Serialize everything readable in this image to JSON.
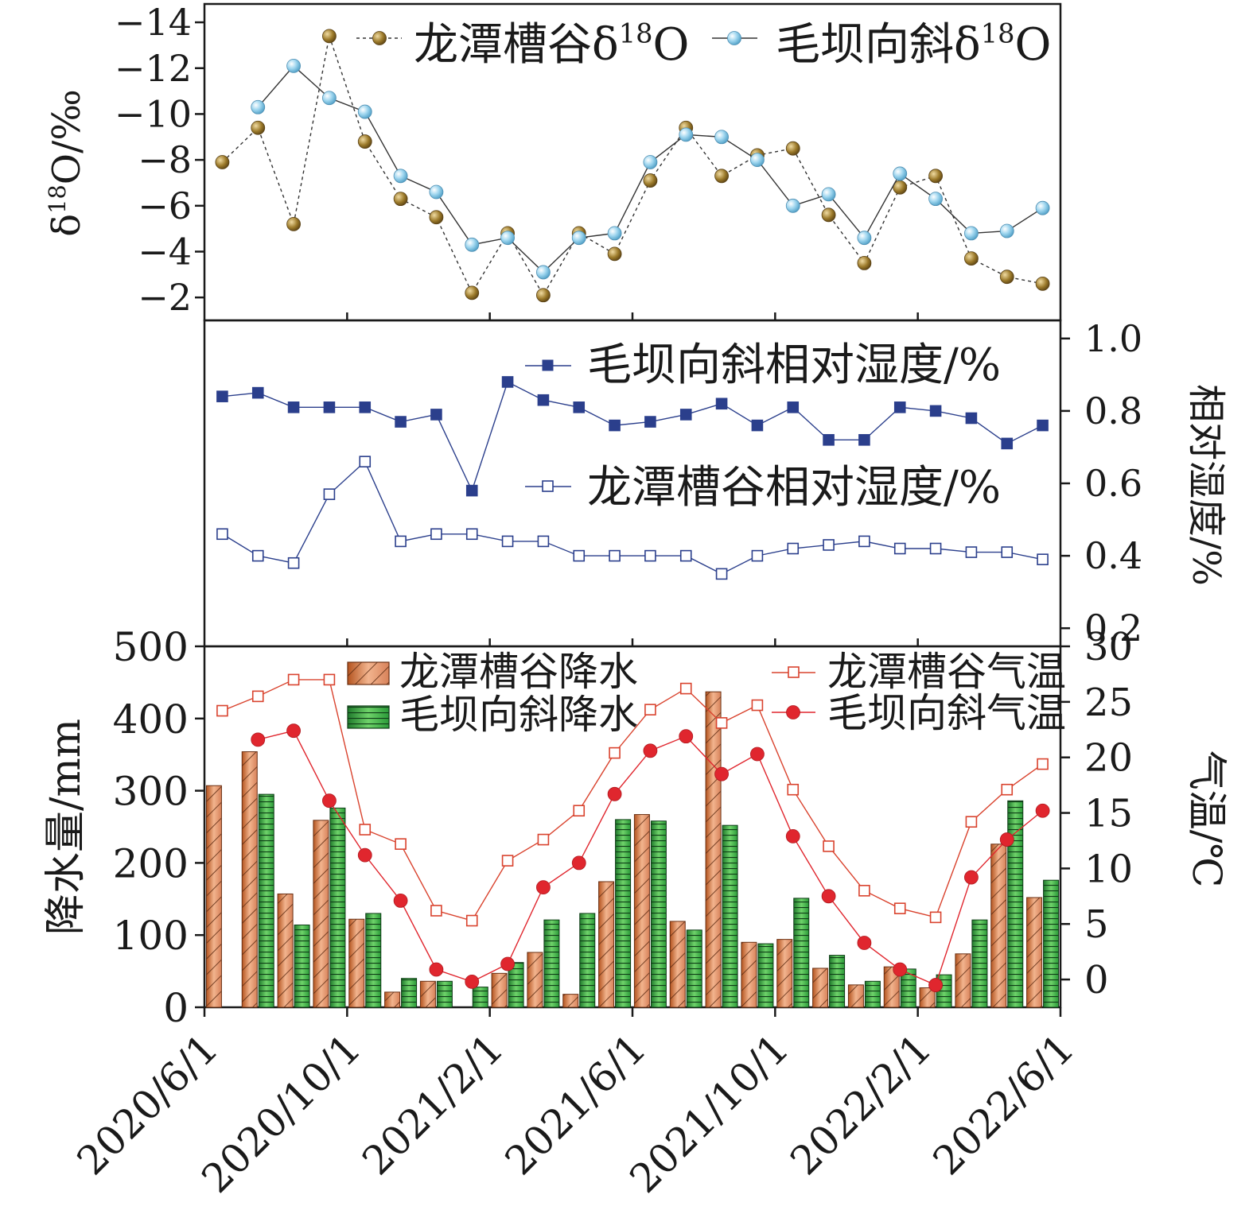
{
  "chart_data": [
    {
      "type": "line",
      "panel": "top",
      "ylabel": "δ18O/‰",
      "ylabel_base": "δ",
      "ylabel_sup": "18",
      "ylabel_rest": "O/‰",
      "ylim": [
        -1,
        -14.8
      ],
      "inverted": true,
      "yticks": [
        -14,
        -12,
        -10,
        -8,
        -6,
        -4,
        -2
      ],
      "ytick_labels": [
        "−14",
        "−12",
        "−10",
        "−8",
        "−6",
        "−4",
        "−2"
      ],
      "legend": [
        {
          "base": "龙潭槽谷δ",
          "sup": "18",
          "rest": "O"
        },
        {
          "base": "毛坝向斜δ",
          "sup": "18",
          "rest": "O"
        }
      ],
      "series": [
        {
          "name": "龙潭槽谷δ18O",
          "color": "#8b6b23",
          "x": [
            0,
            1,
            2,
            3,
            4,
            5,
            6,
            7,
            8,
            9,
            10,
            11,
            12,
            13,
            14,
            15,
            16,
            17,
            18,
            19,
            20,
            21,
            22,
            23
          ],
          "values": [
            -7.9,
            -9.4,
            -5.2,
            -13.4,
            -8.8,
            -6.3,
            -5.5,
            -2.2,
            -4.8,
            -2.1,
            -4.8,
            -3.9,
            -7.1,
            -9.4,
            -7.3,
            -8.2,
            -8.5,
            -5.6,
            -3.5,
            -6.8,
            -7.3,
            -3.7,
            -2.9,
            -2.6
          ]
        },
        {
          "name": "毛坝向斜δ18O",
          "color": "#8ecae6",
          "x": [
            1,
            2,
            3,
            4,
            5,
            6,
            7,
            8,
            9,
            10,
            11,
            12,
            13,
            14,
            15,
            16,
            17,
            18,
            19,
            20,
            21,
            22,
            23
          ],
          "values": [
            -10.3,
            -12.1,
            -10.7,
            -10.1,
            -7.3,
            -6.6,
            -4.3,
            -4.6,
            -3.1,
            -4.6,
            -4.8,
            -7.9,
            -9.1,
            -9.0,
            -8.0,
            -6.0,
            -6.5,
            -4.6,
            -7.4,
            -6.3,
            -4.8,
            -4.9,
            -5.9
          ]
        }
      ]
    },
    {
      "type": "line",
      "panel": "middle",
      "ylabel": "相对湿度/%",
      "ylim": [
        0.15,
        1.05
      ],
      "yticks": [
        0.2,
        0.4,
        0.6,
        0.8,
        1.0
      ],
      "ytick_labels": [
        "0.2",
        "0.4",
        "0.6",
        "0.8",
        "1.0"
      ],
      "series": [
        {
          "name": "毛坝向斜相对湿度/%",
          "color": "#2b3f8c",
          "marker": "filled-square",
          "x": [
            0,
            1,
            2,
            3,
            4,
            5,
            6,
            7,
            8,
            9,
            10,
            11,
            12,
            13,
            14,
            15,
            16,
            17,
            18,
            19,
            20,
            21,
            22,
            23
          ],
          "values": [
            0.84,
            0.85,
            0.81,
            0.81,
            0.81,
            0.77,
            0.79,
            0.58,
            0.88,
            0.83,
            0.81,
            0.76,
            0.77,
            0.79,
            0.82,
            0.76,
            0.81,
            0.72,
            0.72,
            0.81,
            0.8,
            0.78,
            0.71,
            0.76
          ]
        },
        {
          "name": "龙潭槽谷相对湿度/%",
          "color": "#2b3f8c",
          "marker": "open-square",
          "x": [
            0,
            1,
            2,
            3,
            4,
            5,
            6,
            7,
            8,
            9,
            10,
            11,
            12,
            13,
            14,
            15,
            16,
            17,
            18,
            19,
            20,
            21,
            22,
            23
          ],
          "values": [
            0.46,
            0.4,
            0.38,
            0.57,
            0.66,
            0.44,
            0.46,
            0.46,
            0.44,
            0.44,
            0.4,
            0.4,
            0.4,
            0.4,
            0.35,
            0.4,
            0.42,
            0.43,
            0.44,
            0.42,
            0.42,
            0.41,
            0.41,
            0.39
          ]
        }
      ]
    },
    {
      "type": "bar",
      "panel": "bottom",
      "ylabel": "降水量/mm",
      "y2label": "气温/℃",
      "ylim": [
        0,
        500
      ],
      "y2lim": [
        -2.5,
        30
      ],
      "yticks": [
        0,
        100,
        200,
        300,
        400,
        500
      ],
      "y2ticks": [
        0,
        5,
        10,
        15,
        20,
        25,
        30
      ],
      "xticks": [
        "2020/6/1",
        "2020/10/1",
        "2021/2/1",
        "2021/6/1",
        "2021/10/1",
        "2022/2/1",
        "2022/6/1"
      ],
      "legend": [
        "龙潭槽谷降水",
        "毛坝向斜降水",
        "龙潭槽谷气温",
        "毛坝向斜气温"
      ],
      "series": [
        {
          "name": "龙潭槽谷降水",
          "color": "#e08a5c",
          "x": [
            0,
            1,
            2,
            3,
            4,
            5,
            6,
            7,
            8,
            9,
            10,
            11,
            12,
            13,
            14,
            15,
            16,
            17,
            18,
            19,
            20,
            21,
            22,
            23
          ],
          "values": [
            307,
            354,
            157,
            259,
            122,
            21,
            36,
            0,
            47,
            76,
            18,
            174,
            267,
            119,
            437,
            90,
            94,
            54,
            31,
            56,
            27,
            74,
            226,
            152
          ]
        },
        {
          "name": "毛坝向斜降水",
          "color": "#3fae4a",
          "x": [
            0,
            1,
            2,
            3,
            4,
            5,
            6,
            7,
            8,
            9,
            10,
            11,
            12,
            13,
            14,
            15,
            16,
            17,
            18,
            19,
            20,
            21,
            22,
            23
          ],
          "values": [
            0,
            295,
            114,
            276,
            130,
            40,
            36,
            28,
            62,
            121,
            130,
            260,
            258,
            107,
            252,
            88,
            151,
            72,
            36,
            53,
            45,
            121,
            286,
            176
          ]
        },
        {
          "name": "龙潭槽谷气温",
          "color": "#d9432e",
          "marker": "open-square",
          "x": [
            0,
            1,
            2,
            3,
            4,
            5,
            6,
            7,
            8,
            9,
            10,
            11,
            12,
            13,
            14,
            15,
            16,
            17,
            18,
            19,
            20,
            21,
            22,
            23
          ],
          "values": [
            24.2,
            25.5,
            27.0,
            27.0,
            13.5,
            12.2,
            6.2,
            5.3,
            10.7,
            12.6,
            15.2,
            20.4,
            24.3,
            26.2,
            23.1,
            24.7,
            17.1,
            12.0,
            8.0,
            6.4,
            5.6,
            14.2,
            17.1,
            19.4
          ]
        },
        {
          "name": "毛坝向斜气温",
          "color": "#e0262e",
          "marker": "filled-circle",
          "x": [
            1,
            2,
            3,
            4,
            5,
            6,
            7,
            8,
            9,
            10,
            11,
            12,
            13,
            14,
            15,
            16,
            17,
            18,
            19,
            20,
            21,
            22,
            23
          ],
          "values": [
            21.6,
            22.4,
            16.1,
            11.2,
            7.1,
            0.9,
            -0.2,
            1.4,
            8.3,
            10.5,
            16.7,
            20.6,
            21.9,
            18.5,
            20.3,
            12.9,
            7.5,
            3.3,
            0.9,
            -0.5,
            9.2,
            12.6,
            15.2
          ]
        }
      ]
    }
  ]
}
